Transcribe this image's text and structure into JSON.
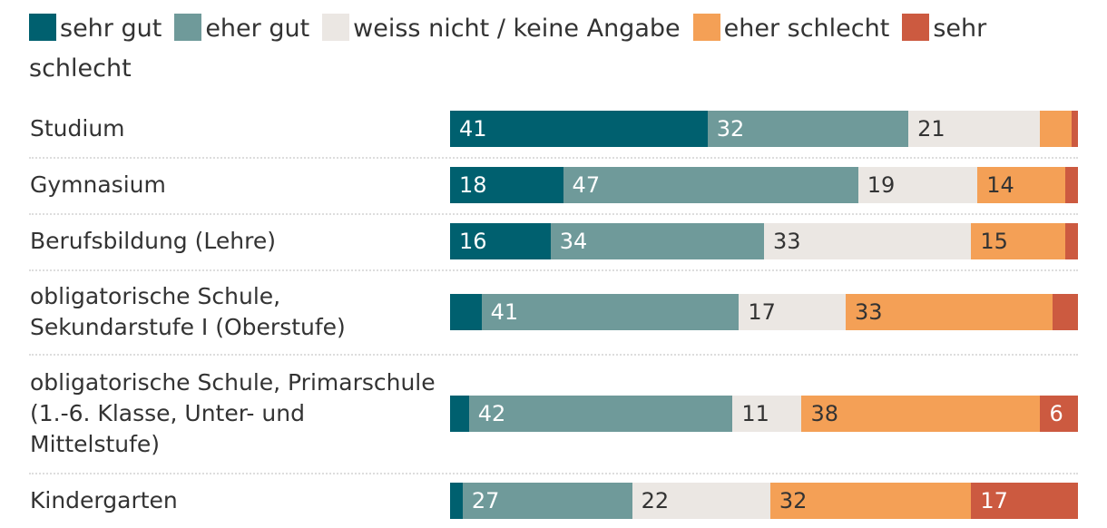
{
  "chart_data": {
    "type": "bar",
    "orientation": "horizontal",
    "stacked": true,
    "normalized": true,
    "xlim": [
      0,
      100
    ],
    "title": "",
    "xlabel": "",
    "ylabel": "",
    "legend_position": "top",
    "categories": [
      "Studium",
      "Gymnasium",
      "Berufsbildung (Lehre)",
      "obligatorische Schule, Sekundarstufe I (Oberstufe)",
      "obligatorische Schule, Primarschule (1.-6. Klasse, Unter- und Mittelstufe)",
      "Kindergarten"
    ],
    "series": [
      {
        "name": "sehr gut",
        "color": "#00606f",
        "text_color": "#ffffff",
        "values": [
          41,
          18,
          16,
          5,
          3,
          2
        ]
      },
      {
        "name": "eher gut",
        "color": "#6f9a9a",
        "text_color": "#ffffff",
        "values": [
          32,
          47,
          34,
          41,
          42,
          27
        ]
      },
      {
        "name": "weiss nicht / keine Angabe",
        "color": "#ebe7e3",
        "text_color": "#333333",
        "values": [
          21,
          19,
          33,
          17,
          11,
          22
        ]
      },
      {
        "name": "eher schlecht",
        "color": "#f4a056",
        "text_color": "#333333",
        "values": [
          5,
          14,
          15,
          33,
          38,
          32
        ]
      },
      {
        "name": "sehr schlecht",
        "color": "#cc5a40",
        "text_color": "#ffffff",
        "values": [
          1,
          2,
          2,
          4,
          6,
          17
        ]
      }
    ],
    "visible_labels": [
      [
        "41",
        "32",
        "21",
        null,
        null
      ],
      [
        "18",
        "47",
        "19",
        "14",
        null
      ],
      [
        "16",
        "34",
        "33",
        "15",
        null
      ],
      [
        null,
        "41",
        "17",
        "33",
        null
      ],
      [
        null,
        "42",
        "11",
        "38",
        "6"
      ],
      [
        null,
        "27",
        "22",
        "32",
        "17"
      ]
    ]
  }
}
